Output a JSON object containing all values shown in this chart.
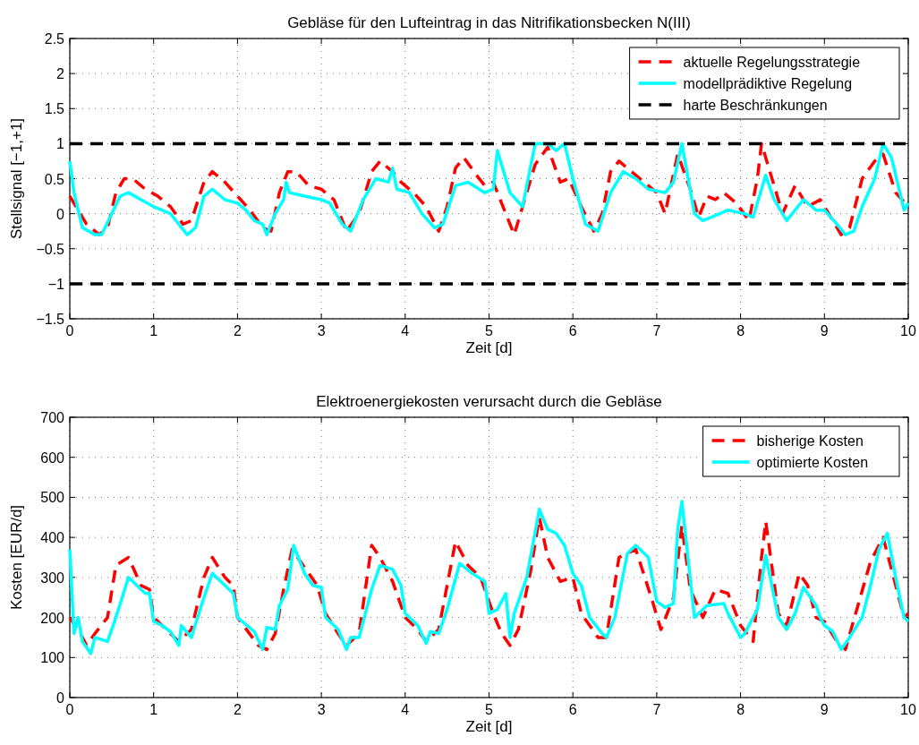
{
  "chart_data": [
    {
      "type": "line",
      "title": "Gebläse für den Lufteintrag in das Nitrifikationsbecken N(III)",
      "xlabel": "Zeit [d]",
      "ylabel": "Stellsignal [−1,+1]",
      "xlim": [
        0,
        10
      ],
      "ylim": [
        -1.5,
        2.5
      ],
      "xticks": [
        0,
        1,
        2,
        3,
        4,
        5,
        6,
        7,
        8,
        9,
        10
      ],
      "yticks": [
        {
          "value": -1.5,
          "label": "−1.5"
        },
        {
          "value": -1,
          "label": "−1"
        },
        {
          "value": -0.5,
          "label": "−0.5"
        },
        0,
        0.5,
        1,
        1.5,
        2,
        2.5
      ],
      "grid": true,
      "legend": "top right",
      "series": [
        {
          "name": "aktuelle Regelungsstrategie",
          "color": "#ff0000",
          "line_style": "dashed",
          "x": [
            0,
            0.1,
            0.2,
            0.35,
            0.45,
            0.55,
            0.65,
            0.75,
            0.9,
            1.05,
            1.2,
            1.35,
            1.45,
            1.6,
            1.7,
            1.85,
            2.0,
            2.15,
            2.3,
            2.4,
            2.5,
            2.6,
            2.7,
            2.85,
            3.0,
            3.15,
            3.3,
            3.45,
            3.6,
            3.7,
            3.85,
            3.95,
            4.1,
            4.25,
            4.4,
            4.5,
            4.6,
            4.7,
            4.85,
            4.95,
            5.05,
            5.2,
            5.3,
            5.45,
            5.55,
            5.7,
            5.85,
            5.95,
            6.1,
            6.25,
            6.35,
            6.45,
            6.55,
            6.7,
            6.85,
            7.0,
            7.1,
            7.25,
            7.4,
            7.5,
            7.6,
            7.7,
            7.8,
            7.95,
            8.1,
            8.2,
            8.25,
            8.4,
            8.5,
            8.65,
            8.8,
            8.95,
            9.1,
            9.2,
            9.3,
            9.45,
            9.6,
            9.7,
            9.85,
            10
          ],
          "values": [
            0.25,
            0.05,
            -0.15,
            -0.3,
            -0.2,
            0.3,
            0.5,
            0.5,
            0.35,
            0.25,
            0.1,
            -0.15,
            -0.1,
            0.45,
            0.6,
            0.45,
            0.25,
            0.05,
            -0.2,
            -0.25,
            0.3,
            0.6,
            0.6,
            0.4,
            0.35,
            0.2,
            -0.25,
            0,
            0.6,
            0.75,
            0.6,
            0.45,
            0.3,
            0.1,
            -0.25,
            0.1,
            0.65,
            0.8,
            0.55,
            0.4,
            0.45,
            0,
            -0.3,
            0.3,
            0.7,
            0.95,
            0.45,
            0.5,
            0.1,
            -0.25,
            0,
            0.6,
            0.75,
            0.6,
            0.45,
            0.3,
            0,
            0.85,
            0.35,
            -0.05,
            0.25,
            0.2,
            0.3,
            0.15,
            -0.1,
            0.5,
            1,
            0.4,
            0,
            0.4,
            0.1,
            0.2,
            -0.1,
            -0.3,
            -0.2,
            0.5,
            0.75,
            0.85,
            0.3,
            0.1
          ]
        },
        {
          "name": "modellprädiktive Regelung",
          "color": "#00ffff",
          "line_style": "solid",
          "x": [
            0,
            0.05,
            0.15,
            0.3,
            0.38,
            0.5,
            0.6,
            0.7,
            0.85,
            1.0,
            1.1,
            1.2,
            1.4,
            1.5,
            1.6,
            1.7,
            1.85,
            2.0,
            2.1,
            2.2,
            2.3,
            2.35,
            2.45,
            2.55,
            2.58,
            2.62,
            2.8,
            3.0,
            3.1,
            3.25,
            3.35,
            3.5,
            3.65,
            3.8,
            3.85,
            3.9,
            4.05,
            4.2,
            4.35,
            4.45,
            4.6,
            4.75,
            4.95,
            5.05,
            5.1,
            5.25,
            5.4,
            5.55,
            5.7,
            5.8,
            5.9,
            6.0,
            6.15,
            6.3,
            6.45,
            6.6,
            6.75,
            6.9,
            7.1,
            7.2,
            7.3,
            7.45,
            7.55,
            7.65,
            7.85,
            8.05,
            8.15,
            8.3,
            8.4,
            8.55,
            8.65,
            8.75,
            8.9,
            9.0,
            9.15,
            9.25,
            9.35,
            9.45,
            9.6,
            9.7,
            9.8,
            9.95,
            10
          ],
          "values": [
            0.75,
            0.3,
            -0.2,
            -0.3,
            -0.3,
            0,
            0.25,
            0.3,
            0.2,
            0.1,
            0.05,
            0,
            -0.3,
            -0.2,
            0.25,
            0.35,
            0.2,
            0.15,
            0.05,
            -0.1,
            -0.15,
            -0.3,
            0,
            0.2,
            0.45,
            0.3,
            0.25,
            0.2,
            0.15,
            -0.15,
            -0.25,
            0.2,
            0.5,
            0.45,
            0.65,
            0.35,
            0.3,
            0,
            -0.2,
            -0.15,
            0.4,
            0.45,
            0.3,
            0.35,
            0.9,
            0.3,
            0.1,
            1,
            1,
            0.9,
            1,
            0.5,
            -0.15,
            -0.25,
            0.3,
            0.6,
            0.5,
            0.35,
            0.3,
            0.45,
            1,
            0,
            -0.1,
            -0.05,
            0.05,
            0,
            -0.05,
            0.55,
            0.2,
            -0.1,
            0.05,
            0.2,
            0.05,
            0.05,
            -0.15,
            -0.3,
            -0.25,
            0.1,
            0.5,
            1,
            0.8,
            0.05,
            0.15
          ]
        },
        {
          "name": "harte Beschränkungen",
          "color": "#000000",
          "line_style": "dashed",
          "x": [
            0,
            10
          ],
          "values": [
            1,
            1
          ]
        },
        {
          "color": "#000000",
          "line_style": "dashed",
          "x": [
            0,
            10
          ],
          "values": [
            -1,
            -1
          ]
        }
      ]
    },
    {
      "type": "line",
      "title": "Elektroenergiekosten verursacht durch die Gebläse",
      "xlabel": "Zeit [d]",
      "ylabel": "Kosten [EUR/d]",
      "xlim": [
        0,
        10
      ],
      "ylim": [
        0,
        700
      ],
      "xticks": [
        0,
        1,
        2,
        3,
        4,
        5,
        6,
        7,
        8,
        9,
        10
      ],
      "yticks": [
        0,
        100,
        200,
        300,
        400,
        500,
        600,
        700
      ],
      "grid": true,
      "legend": "top right",
      "series": [
        {
          "name": "bisherige Kosten",
          "color": "#ff0000",
          "line_style": "dashed",
          "x": [
            0,
            0.15,
            0.2,
            0.3,
            0.45,
            0.55,
            0.7,
            0.85,
            0.95,
            1.0,
            1.1,
            1.3,
            1.45,
            1.6,
            1.7,
            1.85,
            1.95,
            2.0,
            2.25,
            2.35,
            2.45,
            2.55,
            2.65,
            2.85,
            2.95,
            3.05,
            3.2,
            3.3,
            3.45,
            3.6,
            3.7,
            3.85,
            4.0,
            4.15,
            4.25,
            4.4,
            4.6,
            4.75,
            4.9,
            5.05,
            5.15,
            5.25,
            5.35,
            5.5,
            5.6,
            5.7,
            5.85,
            6.0,
            6.1,
            6.3,
            6.4,
            6.55,
            6.75,
            6.95,
            7.05,
            7.2,
            7.3,
            7.4,
            7.55,
            7.7,
            7.85,
            8.0,
            8.15,
            8.25,
            8.3,
            8.45,
            8.55,
            8.7,
            8.8,
            8.9,
            9.0,
            9.15,
            9.25,
            9.4,
            9.55,
            9.7,
            9.85,
            9.95,
            10
          ],
          "values": [
            200,
            150,
            130,
            160,
            200,
            330,
            350,
            280,
            270,
            200,
            180,
            140,
            170,
            300,
            350,
            300,
            280,
            200,
            130,
            120,
            160,
            270,
            370,
            310,
            280,
            210,
            160,
            130,
            160,
            380,
            350,
            290,
            200,
            170,
            140,
            170,
            390,
            330,
            300,
            210,
            160,
            130,
            170,
            320,
            450,
            350,
            290,
            300,
            210,
            150,
            150,
            350,
            370,
            240,
            170,
            250,
            430,
            270,
            200,
            270,
            260,
            180,
            140,
            350,
            440,
            210,
            180,
            310,
            280,
            200,
            190,
            140,
            120,
            230,
            340,
            400,
            280,
            200,
            210
          ]
        },
        {
          "name": "optimierte Kosten",
          "color": "#00ffff",
          "line_style": "solid",
          "x": [
            0,
            0.05,
            0.1,
            0.15,
            0.25,
            0.3,
            0.45,
            0.55,
            0.7,
            0.9,
            0.95,
            1.0,
            1.1,
            1.2,
            1.3,
            1.33,
            1.45,
            1.6,
            1.7,
            1.85,
            1.95,
            2.0,
            2.2,
            2.3,
            2.35,
            2.45,
            2.5,
            2.6,
            2.67,
            2.8,
            2.9,
            3.0,
            3.05,
            3.2,
            3.3,
            3.35,
            3.45,
            3.6,
            3.7,
            3.85,
            3.95,
            4.0,
            4.15,
            4.25,
            4.3,
            4.4,
            4.5,
            4.65,
            4.8,
            4.95,
            5.0,
            5.1,
            5.2,
            5.25,
            5.3,
            5.45,
            5.6,
            5.7,
            5.8,
            5.9,
            6.0,
            6.1,
            6.2,
            6.35,
            6.4,
            6.5,
            6.65,
            6.75,
            6.9,
            7.0,
            7.1,
            7.2,
            7.25,
            7.3,
            7.45,
            7.6,
            7.8,
            7.85,
            8.0,
            8.05,
            8.2,
            8.3,
            8.45,
            8.55,
            8.65,
            8.75,
            8.9,
            8.95,
            9.0,
            9.1,
            9.2,
            9.3,
            9.45,
            9.55,
            9.65,
            9.75,
            9.85,
            9.95,
            10
          ],
          "values": [
            370,
            160,
            200,
            140,
            110,
            150,
            140,
            200,
            300,
            260,
            260,
            190,
            180,
            165,
            130,
            180,
            150,
            250,
            310,
            280,
            260,
            200,
            165,
            120,
            175,
            170,
            230,
            270,
            380,
            310,
            280,
            275,
            200,
            170,
            120,
            150,
            150,
            270,
            330,
            320,
            280,
            210,
            180,
            135,
            165,
            160,
            220,
            335,
            310,
            290,
            210,
            220,
            260,
            150,
            210,
            300,
            470,
            420,
            410,
            380,
            310,
            280,
            200,
            160,
            150,
            200,
            360,
            380,
            350,
            240,
            225,
            235,
            420,
            490,
            200,
            230,
            235,
            210,
            150,
            160,
            220,
            355,
            200,
            170,
            210,
            275,
            230,
            200,
            180,
            165,
            120,
            150,
            200,
            280,
            370,
            410,
            300,
            200,
            190
          ]
        }
      ]
    }
  ]
}
